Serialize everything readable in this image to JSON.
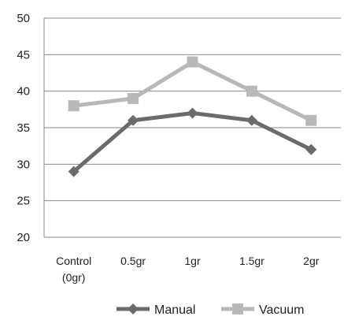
{
  "chart_data": {
    "type": "line",
    "categories": [
      "Control\n(0gr)",
      "0.5gr",
      "1gr",
      "1.5gr",
      "2gr"
    ],
    "series": [
      {
        "name": "Manual",
        "values": [
          29,
          36,
          37,
          36,
          32
        ],
        "color": "#6b6b6b",
        "marker": "diamond"
      },
      {
        "name": "Vacuum",
        "values": [
          38,
          39,
          44,
          40,
          36
        ],
        "color": "#b8b8b8",
        "marker": "square"
      }
    ],
    "ylim": [
      20,
      50
    ],
    "yticks": [
      20,
      25,
      30,
      35,
      40,
      45,
      50
    ],
    "grid": true,
    "legend_position": "bottom",
    "title": "",
    "xlabel": "",
    "ylabel": ""
  }
}
